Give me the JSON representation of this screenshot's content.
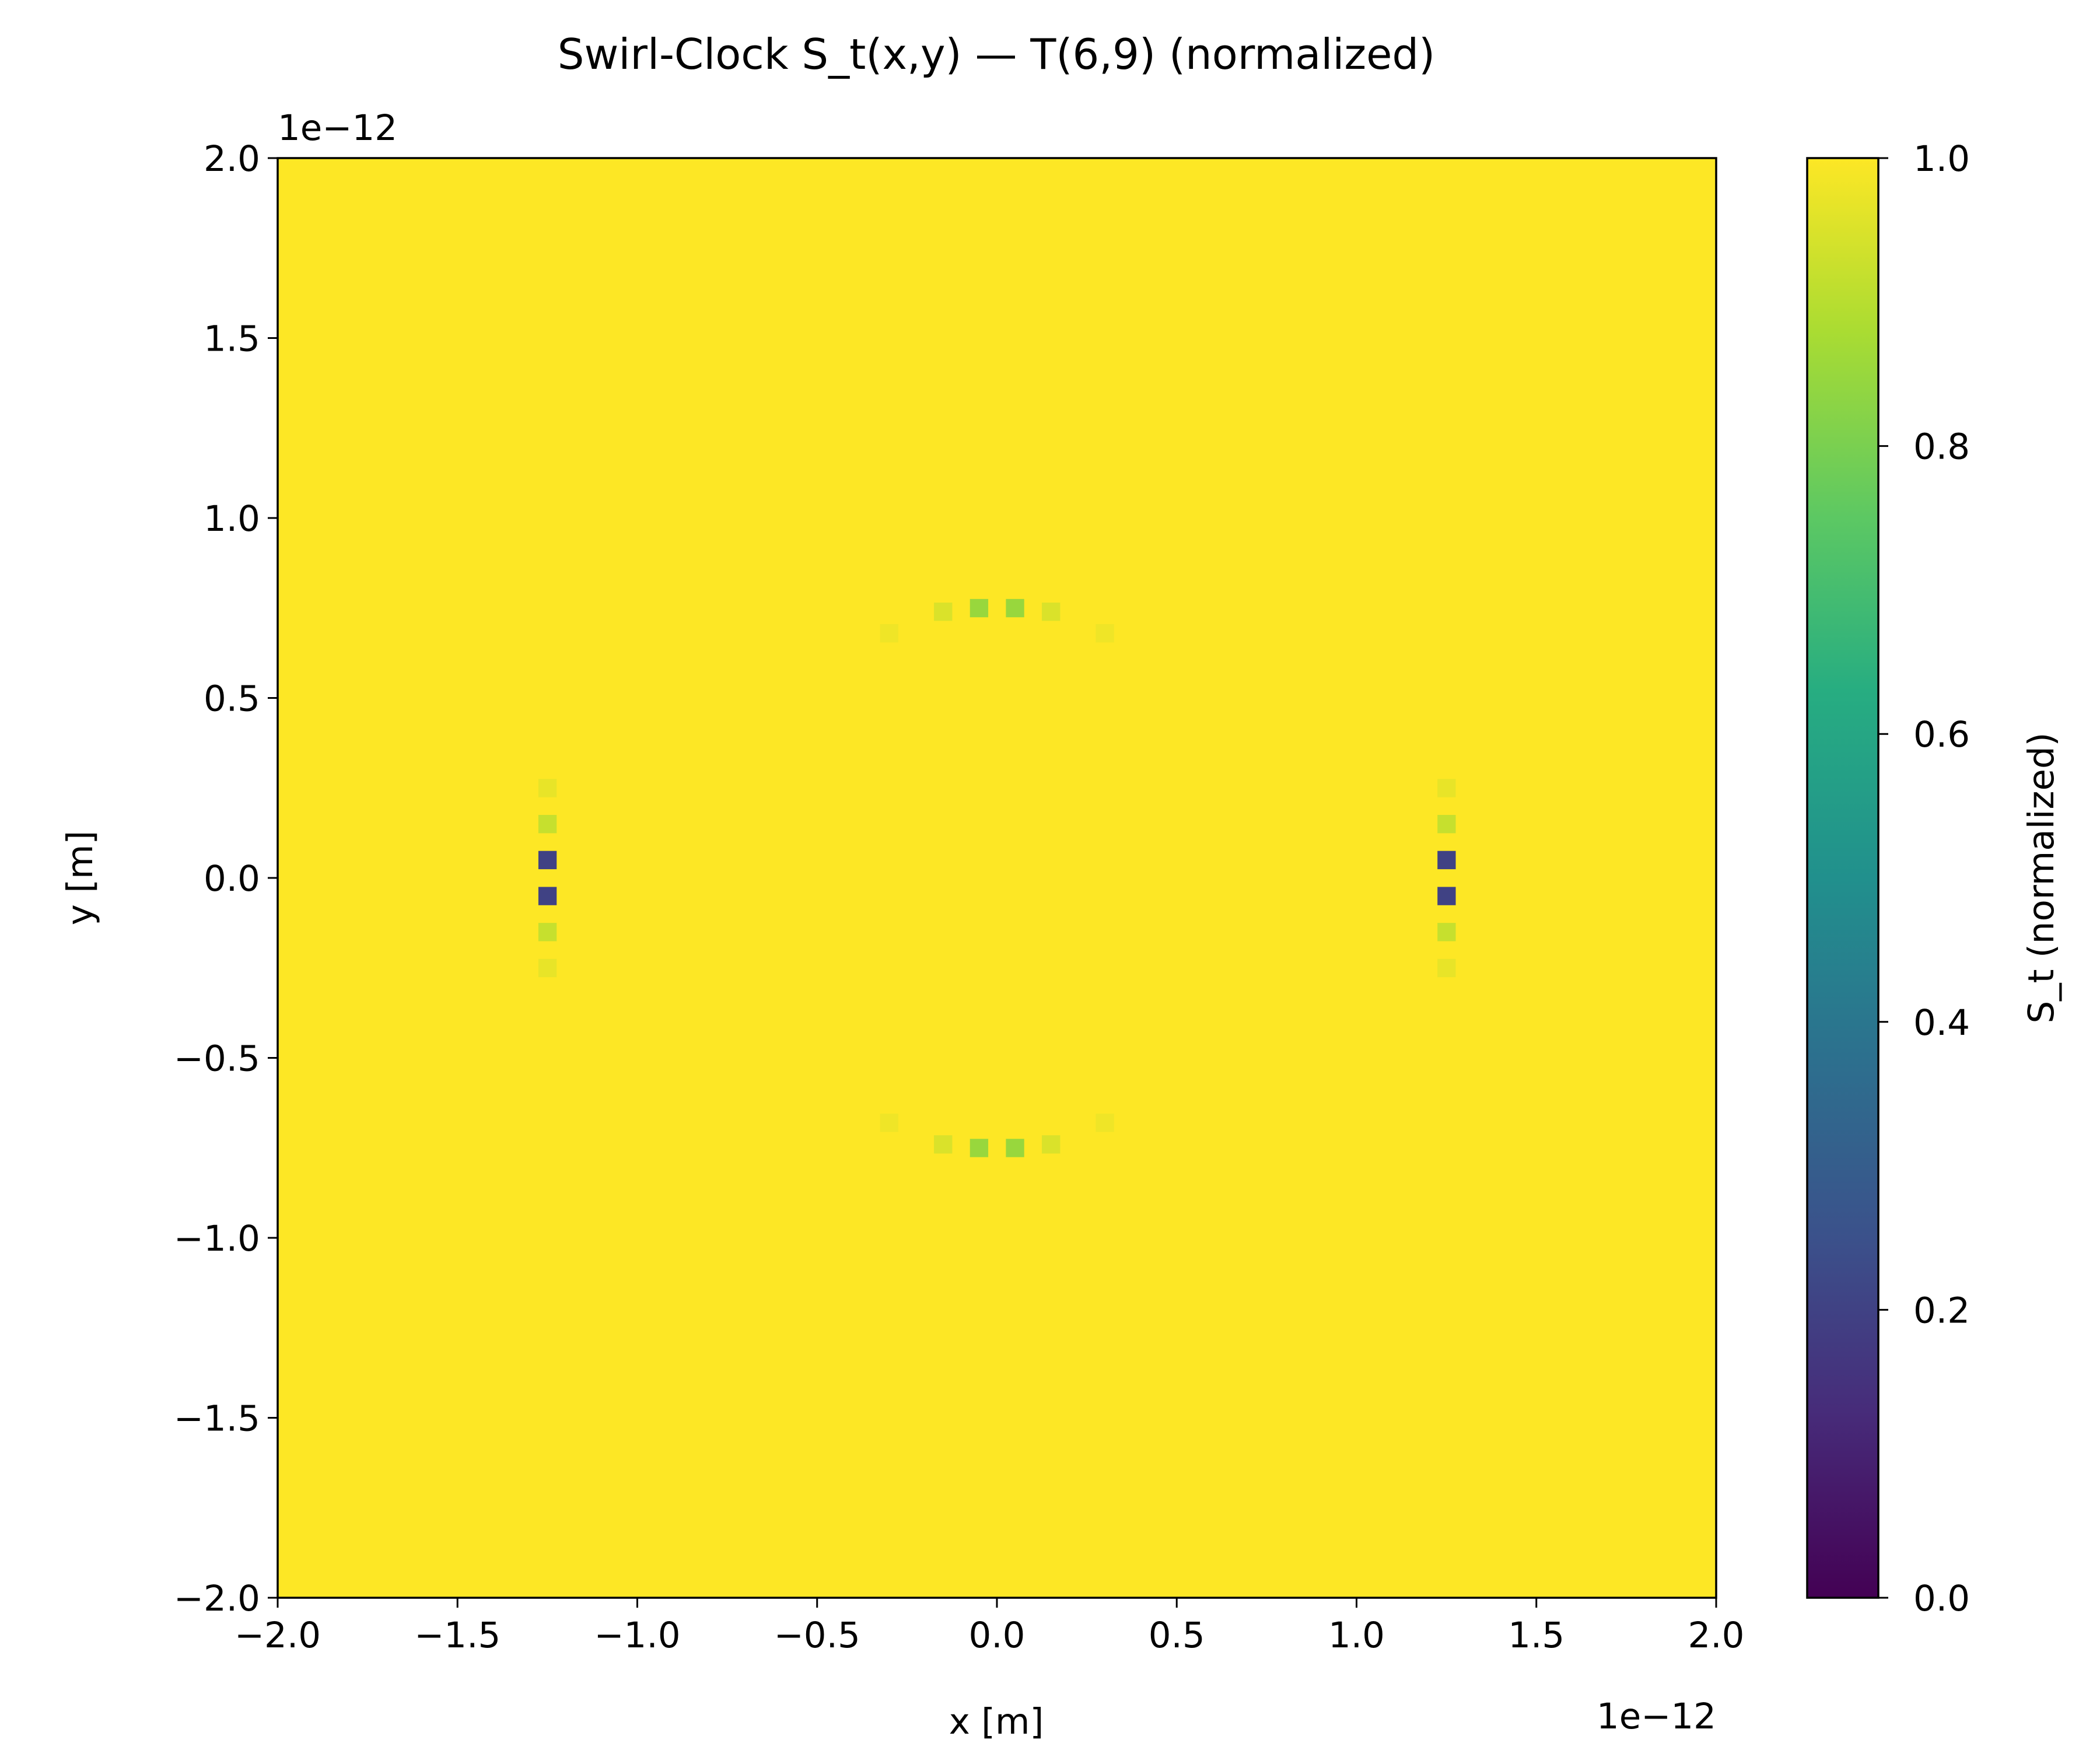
{
  "chart_data": {
    "type": "heatmap",
    "title": "Swirl-Clock S_t(x,y) — T(6,9) (normalized)",
    "xlabel": "x [m]",
    "ylabel": "y [m]",
    "x_offset_label": "1e−12",
    "y_offset_label": "1e−12",
    "xlim": [
      -2.0,
      2.0
    ],
    "ylim": [
      -2.0,
      2.0
    ],
    "x_ticks": [
      -2.0,
      -1.5,
      -1.0,
      -0.5,
      0.0,
      0.5,
      1.0,
      1.5,
      2.0
    ],
    "x_tick_labels": [
      "−2.0",
      "−1.5",
      "−1.0",
      "−0.5",
      "0.0",
      "0.5",
      "1.0",
      "1.5",
      "2.0"
    ],
    "y_ticks": [
      -2.0,
      -1.5,
      -1.0,
      -0.5,
      0.0,
      0.5,
      1.0,
      1.5,
      2.0
    ],
    "y_tick_labels": [
      "−2.0",
      "−1.5",
      "−1.0",
      "−0.5",
      "0.0",
      "0.5",
      "1.0",
      "1.5",
      "2.0"
    ],
    "colormap": "viridis",
    "background_value": 1.0,
    "grid_cells": 80,
    "features": [
      {
        "x": -0.05,
        "y": 0.75,
        "value": 0.85
      },
      {
        "x": 0.05,
        "y": 0.75,
        "value": 0.85
      },
      {
        "x": -0.15,
        "y": 0.74,
        "value": 0.95
      },
      {
        "x": 0.15,
        "y": 0.74,
        "value": 0.95
      },
      {
        "x": -0.3,
        "y": 0.68,
        "value": 0.98
      },
      {
        "x": 0.3,
        "y": 0.68,
        "value": 0.98
      },
      {
        "x": -0.05,
        "y": -0.75,
        "value": 0.85
      },
      {
        "x": 0.05,
        "y": -0.75,
        "value": 0.85
      },
      {
        "x": -0.15,
        "y": -0.74,
        "value": 0.95
      },
      {
        "x": 0.15,
        "y": -0.74,
        "value": 0.95
      },
      {
        "x": -0.3,
        "y": -0.68,
        "value": 0.98
      },
      {
        "x": 0.3,
        "y": -0.68,
        "value": 0.98
      },
      {
        "x": -1.25,
        "y": 0.05,
        "value": 0.2
      },
      {
        "x": -1.25,
        "y": -0.05,
        "value": 0.2
      },
      {
        "x": -1.25,
        "y": 0.15,
        "value": 0.92
      },
      {
        "x": -1.25,
        "y": -0.15,
        "value": 0.92
      },
      {
        "x": -1.25,
        "y": 0.25,
        "value": 0.97
      },
      {
        "x": -1.25,
        "y": -0.25,
        "value": 0.97
      },
      {
        "x": 1.25,
        "y": 0.05,
        "value": 0.2
      },
      {
        "x": 1.25,
        "y": -0.05,
        "value": 0.2
      },
      {
        "x": 1.25,
        "y": 0.15,
        "value": 0.92
      },
      {
        "x": 1.25,
        "y": -0.15,
        "value": 0.92
      },
      {
        "x": 1.25,
        "y": 0.25,
        "value": 0.97
      },
      {
        "x": 1.25,
        "y": -0.25,
        "value": 0.97
      }
    ],
    "colorbar": {
      "label": "S_t (normalized)",
      "range": [
        0.0,
        1.0
      ],
      "ticks": [
        0.0,
        0.2,
        0.4,
        0.6,
        0.8,
        1.0
      ],
      "tick_labels": [
        "0.0",
        "0.2",
        "0.4",
        "0.6",
        "0.8",
        "1.0"
      ]
    },
    "grid": false
  }
}
